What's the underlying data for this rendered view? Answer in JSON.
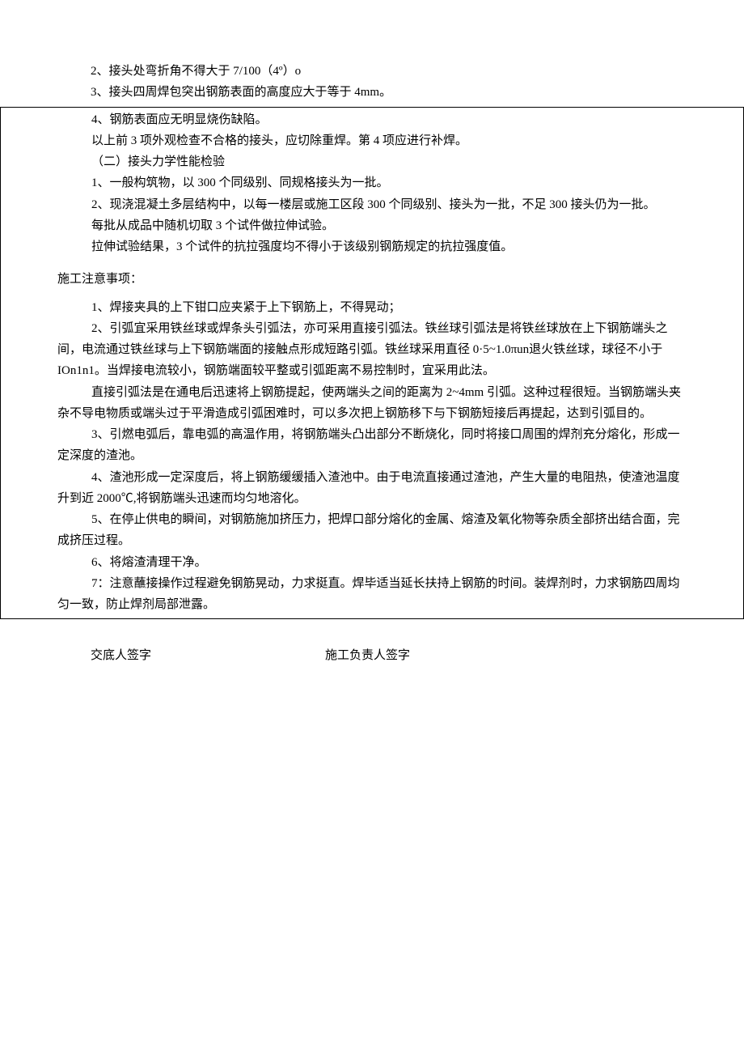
{
  "fonts": {
    "body_size_pt": 11,
    "title_size_pt": 11
  },
  "colors": {
    "text": "#000000",
    "background": "#ffffff",
    "border": "#000000"
  },
  "top": {
    "line1": "2、接头处弯折角不得大于 7/100（4º）o",
    "line2": "3、接头四周焊包突出钢筋表面的高度应大于等于 4mm。"
  },
  "box": {
    "p1": "4、钢筋表面应无明显烧伤缺陷。",
    "p2": "以上前 3 项外观检查不合格的接头，应切除重焊。第 4 项应进行补焊。",
    "p3": "（二）接头力学性能检验",
    "p4": "1、一般构筑物，以 300 个同级别、同规格接头为一批。",
    "p5": "2、现浇混凝土多层结构中，以每一楼层或施工区段 300 个同级别、接头为一批，不足 300 接头仍为一批。",
    "p6": "每批从成品中随机切取 3 个试件做拉伸试验。",
    "p7": "拉伸试验结果，3 个试件的抗拉强度均不得小于该级别钢筋规定的抗拉强度值。",
    "section_title": "施工注意事项：",
    "n1": "1、焊接夹具的上下钳口应夹紧于上下钢筋上，不得晃动；",
    "n2": "2、引弧宜采用铁丝球或焊条头引弧法，亦可采用直接引弧法。铁丝球引弧法是将铁丝球放在上下钢筋端头之间，电流通过铁丝球与上下钢筋端面的接触点形成短路引弧。铁丝球采用直径 0·5~1.0πun退火铁丝球，球径不小于 IOn1n1。当焊接电流较小，钢筋端面较平整或引弧距离不易控制时，宜采用此法。",
    "n3": "直接引弧法是在通电后迅速将上钢筋提起，使两端头之间的距离为 2~4mm 引弧。这种过程很短。当钢筋端头夹杂不导电物质或端头过于平滑造成引弧困难时，可以多次把上钢筋移下与下钢筋短接后再提起，达到引弧目的。",
    "n4": "3、引燃电弧后，靠电弧的高温作用，将钢筋端头凸出部分不断烧化，同时将接口周围的焊剂充分熔化，形成一定深度的渣池。",
    "n5": "4、渣池形成一定深度后，将上钢筋缓缓插入渣池中。由于电流直接通过渣池，产生大量的电阻热，使渣池温度升到近 2000℃,将钢筋端头迅速而均匀地溶化。",
    "n6": "5、在停止供电的瞬间，对钢筋施加挤压力，把焊口部分熔化的金属、熔渣及氧化物等杂质全部挤出结合面，完成挤压过程。",
    "n7": "6、将熔渣清理干净。",
    "n8": "7：注意蘸接操作过程避免钢筋晃动，力求挺直。焊毕适当延长扶持上钢筋的时间。装焊剂时，力求钢筋四周均匀一致，防止焊剂局部泄露。"
  },
  "signatures": {
    "left": "交底人签字",
    "right": "施工负责人签字"
  }
}
